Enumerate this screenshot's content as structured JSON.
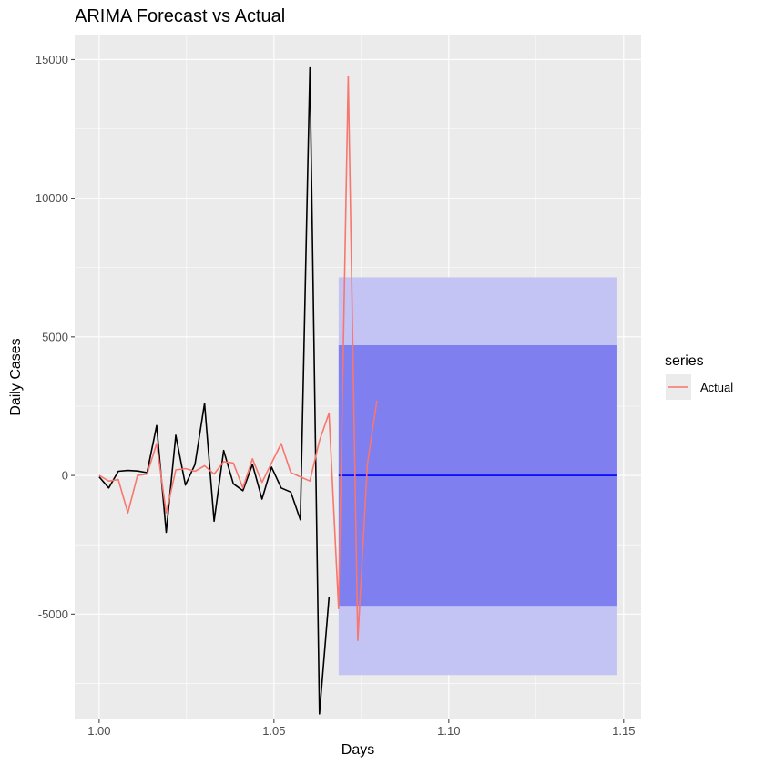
{
  "chart_data": {
    "type": "line",
    "title": "ARIMA Forecast vs Actual",
    "xlabel": "Days",
    "ylabel": "Daily Cases",
    "xlim": [
      0.993,
      1.155
    ],
    "ylim": [
      -8800,
      15900
    ],
    "x_ticks": [
      {
        "value": 1.0,
        "label": "1.00"
      },
      {
        "value": 1.05,
        "label": "1.05"
      },
      {
        "value": 1.1,
        "label": "1.10"
      },
      {
        "value": 1.15,
        "label": "1.15"
      }
    ],
    "y_ticks": [
      {
        "value": -5000,
        "label": "-5000"
      },
      {
        "value": 0,
        "label": "0"
      },
      {
        "value": 5000,
        "label": "5000"
      },
      {
        "value": 10000,
        "label": "10000"
      },
      {
        "value": 15000,
        "label": "15000"
      }
    ],
    "grid": true,
    "legend": {
      "title": "series",
      "position": "right",
      "entries": [
        {
          "name": "Actual",
          "color": "#f8766d"
        }
      ]
    },
    "series": [
      {
        "color": "#000000",
        "x": [
          1.0,
          1.00274,
          1.00548,
          1.00822,
          1.01096,
          1.0137,
          1.01644,
          1.01918,
          1.02192,
          1.02466,
          1.0274,
          1.03014,
          1.03288,
          1.03562,
          1.03836,
          1.0411,
          1.04384,
          1.04658,
          1.04932,
          1.05206,
          1.0548,
          1.05753,
          1.06027,
          1.06301,
          1.06575
        ],
        "y": [
          -50,
          -450,
          150,
          180,
          160,
          100,
          1800,
          -2050,
          1450,
          -350,
          400,
          2600,
          -1650,
          900,
          -300,
          -550,
          400,
          -850,
          300,
          -450,
          -600,
          -1600,
          14700,
          -8600,
          -4400
        ]
      },
      {
        "name": "Actual",
        "color": "#f8766d",
        "x": [
          1.0,
          1.00274,
          1.00548,
          1.00822,
          1.01096,
          1.0137,
          1.01644,
          1.01918,
          1.02192,
          1.02466,
          1.0274,
          1.03014,
          1.03288,
          1.03562,
          1.03836,
          1.0411,
          1.04384,
          1.04658,
          1.04932,
          1.05206,
          1.0548,
          1.05753,
          1.06027,
          1.06301,
          1.06575,
          1.06849,
          1.07123,
          1.07397,
          1.07671,
          1.07945
        ],
        "y": [
          0,
          -200,
          -150,
          -1350,
          0,
          50,
          1150,
          -1350,
          200,
          250,
          150,
          350,
          50,
          500,
          450,
          -450,
          600,
          -250,
          450,
          1150,
          100,
          -50,
          -200,
          1250,
          2250,
          -4800,
          14400,
          -5950,
          400,
          2700
        ]
      }
    ],
    "forecast": {
      "x_start": 1.06849,
      "x_end": 1.14795,
      "mean": 0,
      "mean_color": "#0000ff",
      "pi80": [
        -4700,
        4700
      ],
      "pi80_color": "#7f7ff0",
      "pi95": [
        -7200,
        7150
      ],
      "pi95_color": "#c4c4f4"
    }
  }
}
